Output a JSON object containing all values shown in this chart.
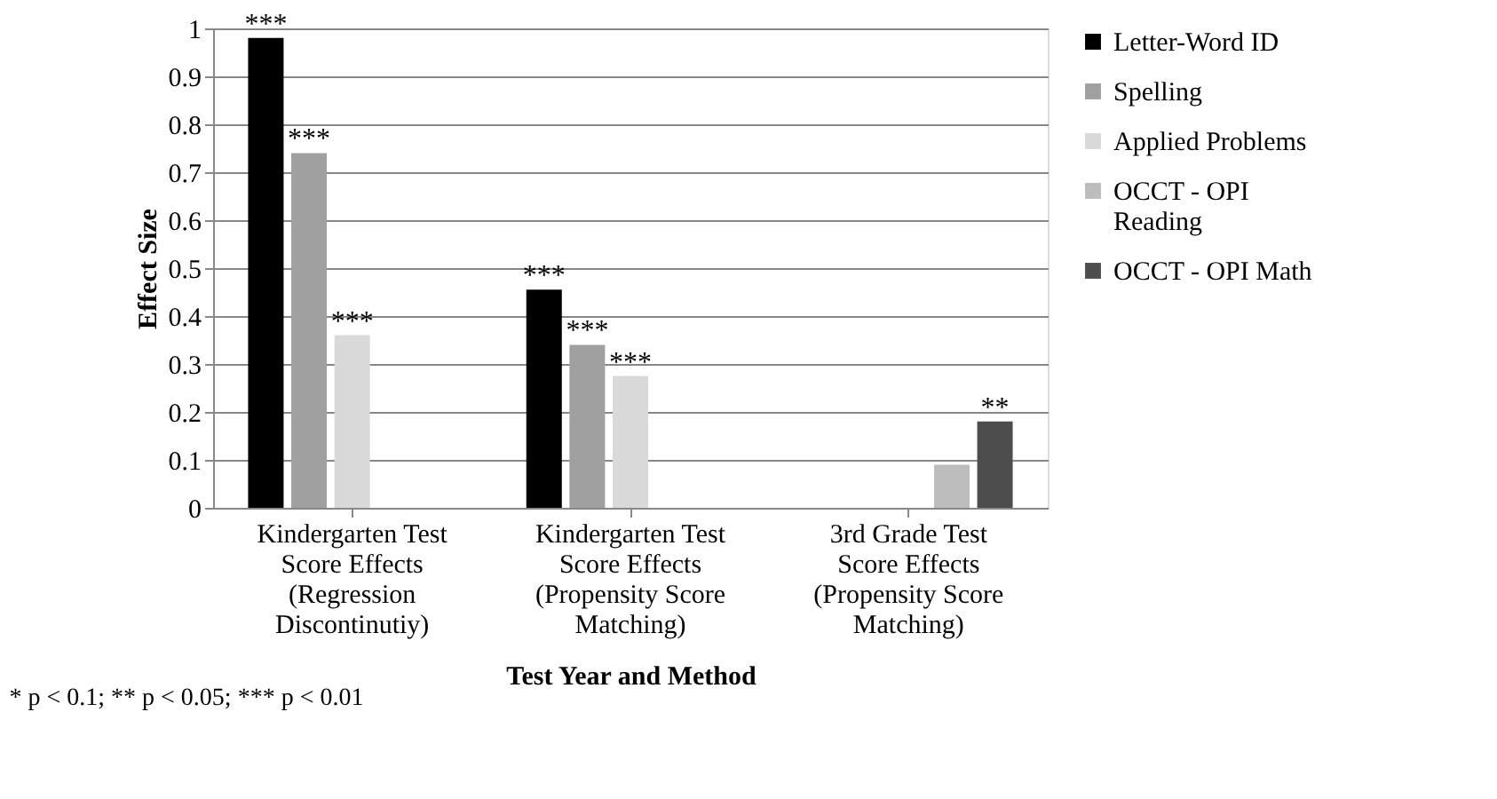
{
  "chart_data": {
    "type": "bar",
    "xlabel": "Test Year and Method",
    "ylabel": "Effect Size",
    "categories": [
      "Kindergarten Test Score Effects (Regression Discontinutiy)",
      "Kindergarten Test Score Effects (Propensity Score Matching)",
      "3rd Grade Test Score Effects (Propensity Score Matching)"
    ],
    "series": [
      {
        "name": "Letter-Word ID",
        "color": "#000000",
        "values": [
          0.98,
          0.455,
          null
        ],
        "value_labels": [
          "***",
          "***",
          null
        ]
      },
      {
        "name": "Spelling",
        "color": "#a0a0a0",
        "values": [
          0.74,
          0.34,
          null
        ],
        "value_labels": [
          "***",
          "***",
          null
        ]
      },
      {
        "name": "Applied Problems",
        "color": "#d9d9d9",
        "values": [
          0.36,
          0.275,
          null
        ],
        "value_labels": [
          "***",
          "***",
          null
        ]
      },
      {
        "name": "OCCT - OPI Reading",
        "color": "#bdbdbd",
        "values": [
          null,
          null,
          0.09
        ],
        "value_labels": [
          null,
          null,
          null
        ]
      },
      {
        "name": "OCCT - OPI Math",
        "color": "#4d4d4d",
        "values": [
          null,
          null,
          0.18
        ],
        "value_labels": [
          null,
          null,
          "**"
        ]
      }
    ],
    "ylim": [
      0,
      1
    ],
    "yticks": [
      0,
      0.1,
      0.2,
      0.3,
      0.4,
      0.5,
      0.6,
      0.7,
      0.8,
      0.9,
      1
    ],
    "grid": "y",
    "legend": "right",
    "annotations": [
      "* p < 0.1; ** p < 0.05; *** p < 0.01"
    ]
  }
}
